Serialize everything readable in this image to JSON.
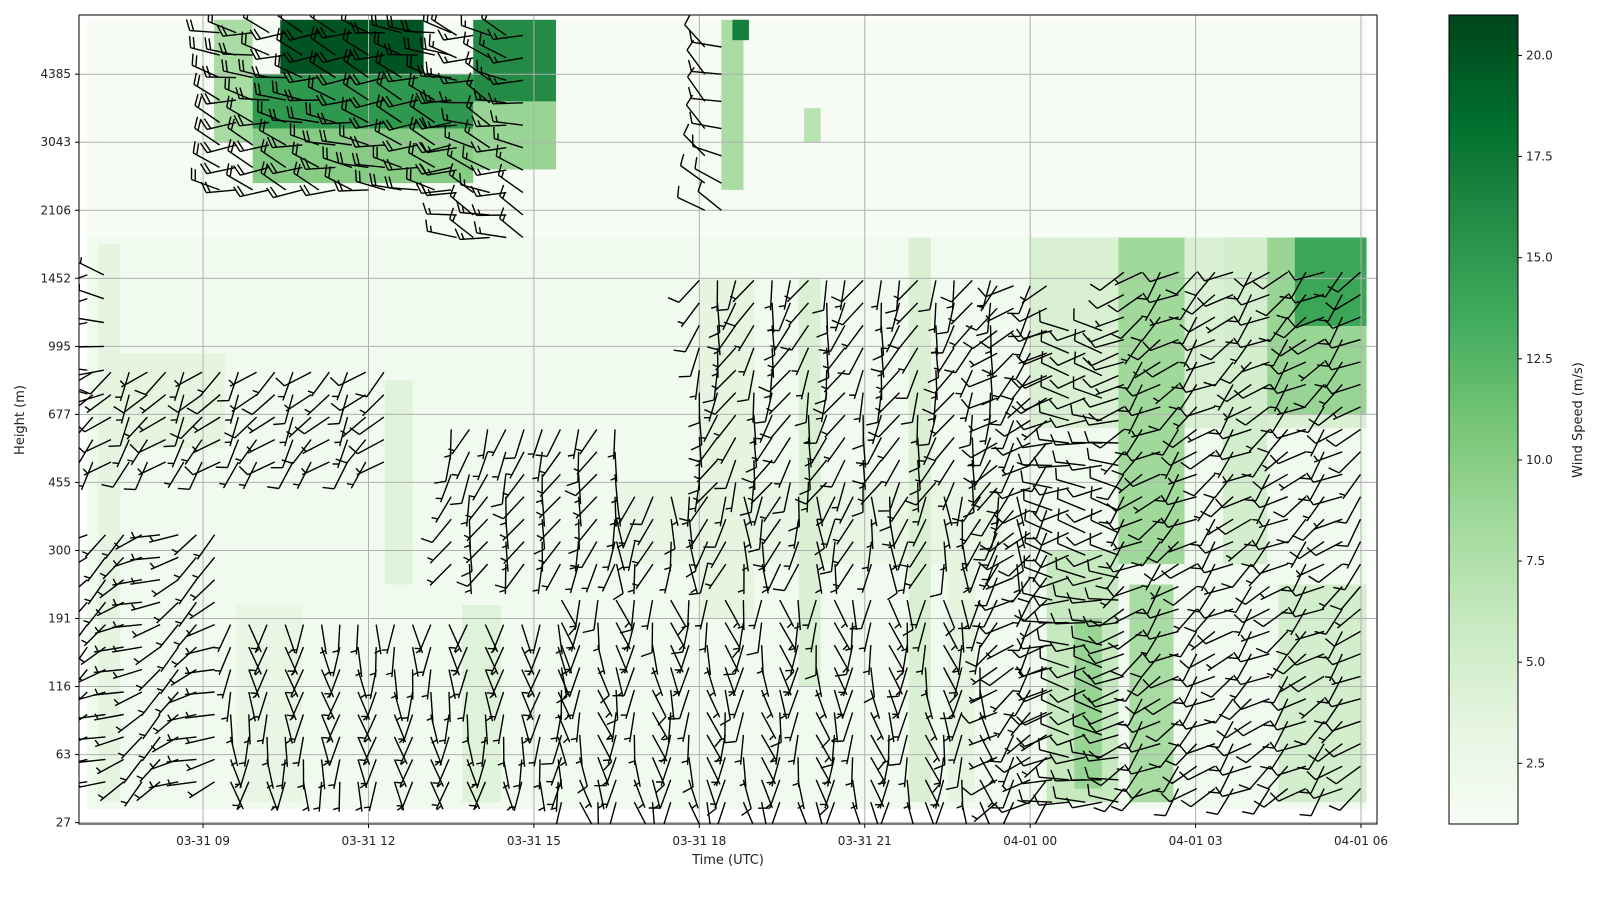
{
  "chart_data": {
    "type": "heatmap",
    "title": "",
    "xlabel": "Time (UTC)",
    "ylabel": "Height (m)",
    "colorbar_label": "Wind Speed (m/s)",
    "colormap": [
      "#f7fcf5",
      "#e5f5e0",
      "#c7e9c0",
      "#a1d99b",
      "#74c476",
      "#41ab5d",
      "#238b45",
      "#006d2c",
      "#00441b"
    ],
    "color_range": [
      1.0,
      21.0
    ],
    "colorbar_ticks": [
      "2.5",
      "5.0",
      "7.5",
      "10.0",
      "12.5",
      "15.0",
      "17.5",
      "20.0"
    ],
    "colorbar_tick_values": [
      2.5,
      5,
      7.5,
      10,
      12.5,
      15,
      17.5,
      20
    ],
    "x_range_hours": [
      6.75,
      30.29
    ],
    "x_ticks": [
      {
        "hour": 9,
        "label": "03-31 09"
      },
      {
        "hour": 12,
        "label": "03-31 12"
      },
      {
        "hour": 15,
        "label": "03-31 15"
      },
      {
        "hour": 18,
        "label": "03-31 18"
      },
      {
        "hour": 21,
        "label": "03-31 21"
      },
      {
        "hour": 24,
        "label": "04-01 00"
      },
      {
        "hour": 27,
        "label": "04-01 03"
      },
      {
        "hour": 30,
        "label": "04-01 06"
      }
    ],
    "y_range_levels": [
      -0.02,
      11.87
    ],
    "y_ticks": [
      "27",
      "63",
      "116",
      "191",
      "300",
      "455",
      "677",
      "995",
      "1452",
      "2106",
      "3043",
      "4385"
    ],
    "grid": true,
    "speed_blocks": [
      {
        "t": [
          6.9,
          30.1
        ],
        "lev": [
          0.2,
          8.6
        ],
        "speed": 1.8
      },
      {
        "t": [
          6.9,
          30.1
        ],
        "lev": [
          8.6,
          11.8
        ],
        "speed": 1.2
      },
      {
        "t": [
          7.1,
          7.5
        ],
        "lev": [
          0.3,
          8.5
        ],
        "speed": 3.5
      },
      {
        "t": [
          7.5,
          9.4
        ],
        "lev": [
          5.5,
          6.9
        ],
        "speed": 3.5
      },
      {
        "t": [
          9.6,
          10.8
        ],
        "lev": [
          0.3,
          3.2
        ],
        "speed": 3.0
      },
      {
        "t": [
          12.3,
          12.8
        ],
        "lev": [
          3.5,
          6.5
        ],
        "speed": 4.0
      },
      {
        "t": [
          13.7,
          14.4
        ],
        "lev": [
          0.3,
          3.2
        ],
        "speed": 4.0
      },
      {
        "t": [
          16.5,
          23.5
        ],
        "lev": [
          3.8,
          5.0
        ],
        "speed": 3.0
      },
      {
        "t": [
          18.0,
          19.0
        ],
        "lev": [
          3.0,
          8.0
        ],
        "speed": 3.5
      },
      {
        "t": [
          19.8,
          20.2
        ],
        "lev": [
          2.0,
          8.0
        ],
        "speed": 4.5
      },
      {
        "t": [
          21.8,
          22.2
        ],
        "lev": [
          0.3,
          8.6
        ],
        "speed": 4.5
      },
      {
        "t": [
          22.5,
          23.0
        ],
        "lev": [
          0.3,
          4.0
        ],
        "speed": 3.5
      },
      {
        "t": [
          24.0,
          30.1
        ],
        "lev": [
          5.8,
          8.6
        ],
        "speed": 4.5
      },
      {
        "t": [
          24.3,
          25.6
        ],
        "lev": [
          0.3,
          4.0
        ],
        "speed": 6.0
      },
      {
        "t": [
          24.8,
          25.3
        ],
        "lev": [
          0.5,
          3.0
        ],
        "speed": 9.0
      },
      {
        "t": [
          25.6,
          26.8
        ],
        "lev": [
          3.8,
          8.6
        ],
        "speed": 8.5
      },
      {
        "t": [
          25.8,
          26.6
        ],
        "lev": [
          0.3,
          3.5
        ],
        "speed": 8.0
      },
      {
        "t": [
          27.5,
          28.3
        ],
        "lev": [
          3.8,
          8.6
        ],
        "speed": 5.0
      },
      {
        "t": [
          28.3,
          30.1
        ],
        "lev": [
          6.0,
          8.6
        ],
        "speed": 9.0
      },
      {
        "t": [
          28.8,
          30.1
        ],
        "lev": [
          7.3,
          8.6
        ],
        "speed": 14.0
      },
      {
        "t": [
          28.5,
          30.1
        ],
        "lev": [
          0.3,
          3.5
        ],
        "speed": 5.0
      },
      {
        "t": [
          9.2,
          9.9
        ],
        "lev": [
          10.0,
          11.8
        ],
        "speed": 8.0
      },
      {
        "t": [
          9.9,
          13.9
        ],
        "lev": [
          9.4,
          10.2
        ],
        "speed": 10.0
      },
      {
        "t": [
          9.9,
          13.9
        ],
        "lev": [
          10.2,
          11.0
        ],
        "speed": 15.0
      },
      {
        "t": [
          10.4,
          13.0
        ],
        "lev": [
          11.0,
          11.8
        ],
        "speed": 20.0
      },
      {
        "t": [
          13.9,
          15.4
        ],
        "lev": [
          9.6,
          10.6
        ],
        "speed": 9.0
      },
      {
        "t": [
          13.9,
          15.4
        ],
        "lev": [
          10.6,
          11.8
        ],
        "speed": 16.0
      },
      {
        "t": [
          18.4,
          18.8
        ],
        "lev": [
          9.3,
          11.8
        ],
        "speed": 8.0
      },
      {
        "t": [
          18.6,
          18.9
        ],
        "lev": [
          11.5,
          11.8
        ],
        "speed": 17.0
      },
      {
        "t": [
          19.9,
          20.2
        ],
        "lev": [
          10.0,
          10.5
        ],
        "speed": 7.0
      }
    ],
    "barb_groups": [
      {
        "t": [
          9.3,
          13.5
        ],
        "dt": 0.3,
        "lev": [
          9.3,
          11.7
        ],
        "dl": 0.33,
        "dir": 280,
        "speed": 20
      },
      {
        "t": [
          13.6,
          15.0
        ],
        "dt": 0.3,
        "lev": [
          8.6,
          11.7
        ],
        "dl": 0.33,
        "dir": 285,
        "speed": 15
      },
      {
        "t": [
          18.1,
          18.5
        ],
        "dt": 0.3,
        "lev": [
          9.0,
          11.6
        ],
        "dl": 0.4,
        "dir": 300,
        "speed": 10
      },
      {
        "t": [
          6.9,
          7.3
        ],
        "dt": 0.3,
        "lev": [
          6.3,
          8.3
        ],
        "dl": 0.35,
        "dir": 275,
        "speed": 5
      },
      {
        "t": [
          7.0,
          12.5
        ],
        "dt": 0.33,
        "lev": [
          5.3,
          6.9
        ],
        "dl": 0.33,
        "dir": 220,
        "speed": 7
      },
      {
        "t": [
          6.9,
          9.5
        ],
        "dt": 0.33,
        "lev": [
          0.6,
          4.5
        ],
        "dl": 0.33,
        "dir": 240,
        "speed": 5
      },
      {
        "t": [
          9.5,
          15.5
        ],
        "dt": 0.33,
        "lev": [
          0.6,
          3.1
        ],
        "dl": 0.33,
        "dir": 180,
        "speed": 5
      },
      {
        "t": [
          13.5,
          16.5
        ],
        "dt": 0.33,
        "lev": [
          3.8,
          6.0
        ],
        "dl": 0.33,
        "dir": 200,
        "speed": 6
      },
      {
        "t": [
          16.5,
          24.0
        ],
        "dt": 0.33,
        "lev": [
          3.8,
          5.0
        ],
        "dl": 0.33,
        "dir": 190,
        "speed": 6
      },
      {
        "t": [
          15.5,
          23.3
        ],
        "dt": 0.33,
        "lev": [
          0.3,
          3.3
        ],
        "dl": 0.33,
        "dir": 175,
        "speed": 6
      },
      {
        "t": [
          18.0,
          23.3
        ],
        "dt": 0.33,
        "lev": [
          5.0,
          8.2
        ],
        "dl": 0.33,
        "dir": 200,
        "speed": 7
      },
      {
        "t": [
          23.4,
          24.4
        ],
        "dt": 0.3,
        "lev": [
          0.3,
          8.0
        ],
        "dl": 0.33,
        "dir": 225,
        "speed": 8
      },
      {
        "t": [
          24.4,
          25.6
        ],
        "dt": 0.3,
        "lev": [
          0.3,
          7.5
        ],
        "dl": 0.33,
        "dir": 270,
        "speed": 10
      },
      {
        "t": [
          25.7,
          30.0
        ],
        "dt": 0.33,
        "lev": [
          0.5,
          8.3
        ],
        "dl": 0.33,
        "dir": 230,
        "speed": 9
      }
    ]
  }
}
